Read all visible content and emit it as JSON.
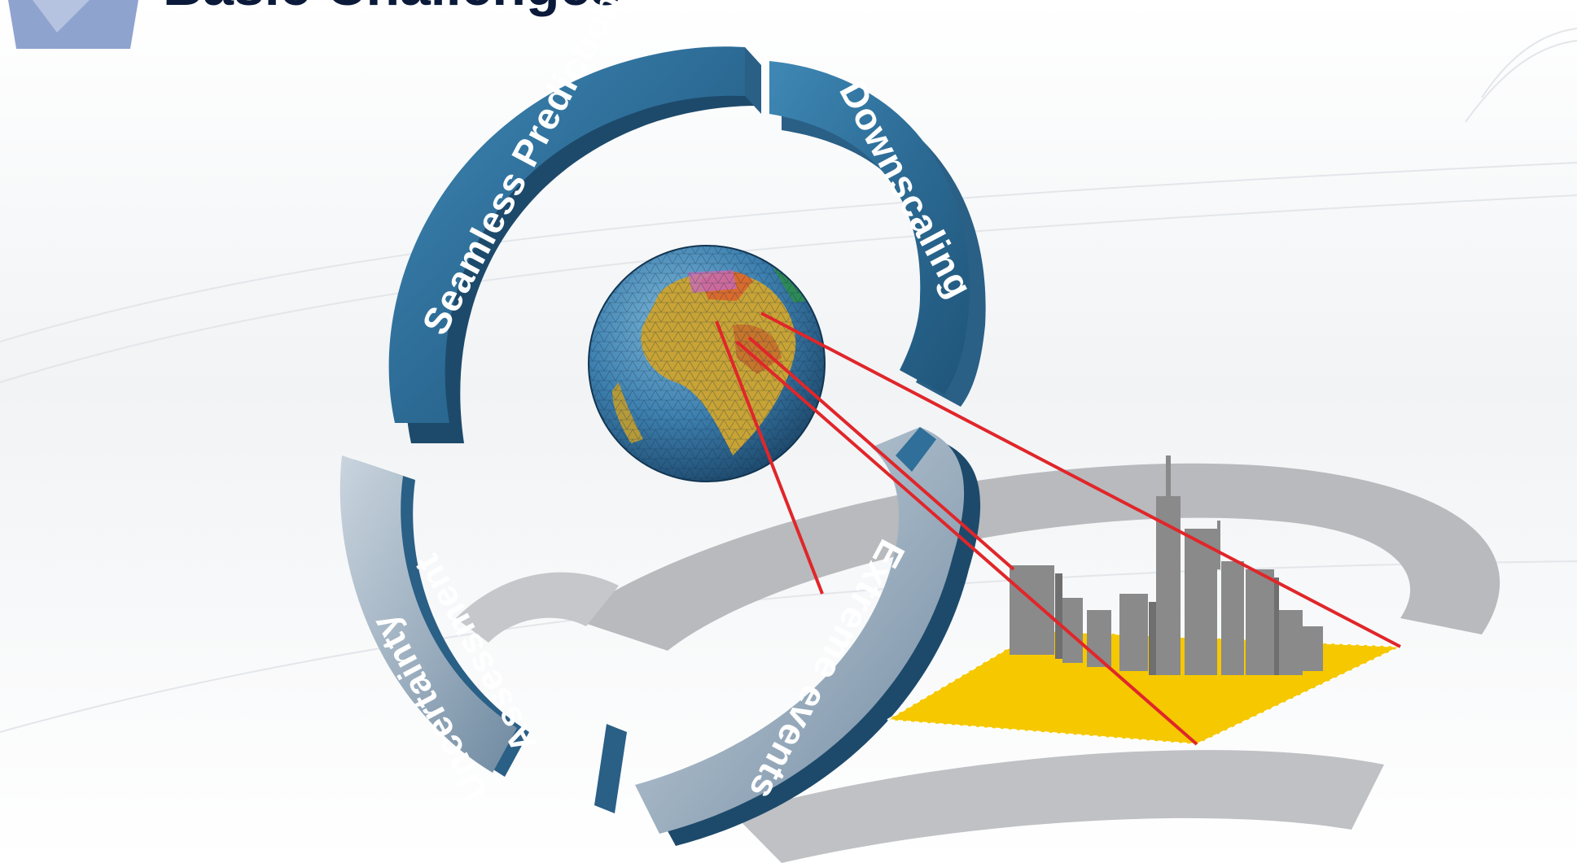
{
  "slide": {
    "title": "Basic Challenges",
    "title_accent_color": "#8fa3cf"
  },
  "cycle": {
    "segments": [
      {
        "id": "seamless",
        "label": "Seamless Prediction",
        "tone": "blue"
      },
      {
        "id": "downscaling",
        "label": "Downscaling",
        "tone": "blue"
      },
      {
        "id": "extreme",
        "label": "Extreme events",
        "tone": "light"
      },
      {
        "id": "uncertainty_line1",
        "label": "Uncertainty",
        "tone": "light"
      },
      {
        "id": "uncertainty_line2",
        "label": "Assessment",
        "tone": "light"
      }
    ],
    "colors": {
      "blue": "#2f6f99",
      "blue_dark": "#1d4a6b",
      "light": "#a9b8c6"
    }
  },
  "globe": {
    "icon": "globe-mesh-icon"
  },
  "city": {
    "icon": "city-skyline-icon",
    "base_color": "#f5c800",
    "building_color": "#8a8a8a"
  },
  "zoom_lines": {
    "color": "#e0262a"
  }
}
